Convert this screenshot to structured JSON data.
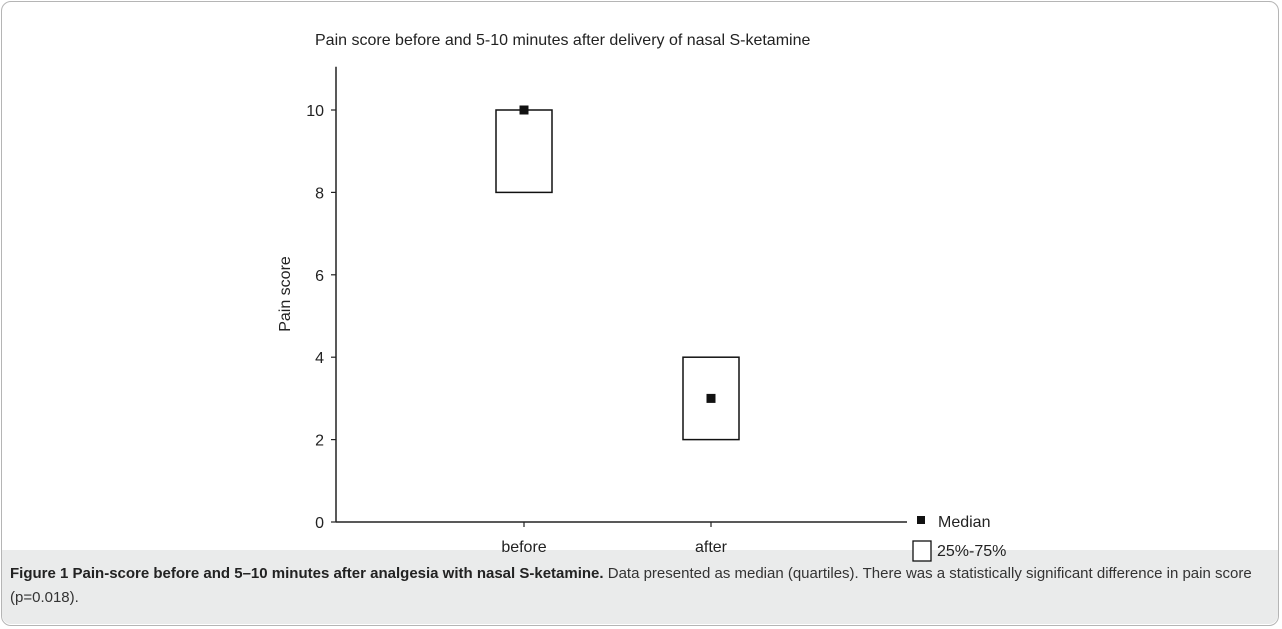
{
  "figure": {
    "label": "Figure 1",
    "title": "Pain-score before and 5–10 minutes after analgesia with nasal S-ketamine.",
    "text": "Data presented as median (quartiles). There was a statistically significant difference in pain score (p=0.018)."
  },
  "chart_data": {
    "type": "box",
    "title": "Pain score before and 5-10 minutes after delivery of nasal S-ketamine",
    "xlabel": "",
    "ylabel": "Pain score",
    "categories": [
      "before",
      "after"
    ],
    "median": [
      10,
      3
    ],
    "q1": [
      8,
      2
    ],
    "q3": [
      10,
      4
    ],
    "ylim": [
      0,
      11
    ],
    "yticks": [
      0,
      2,
      4,
      6,
      8,
      10
    ],
    "grid": false,
    "legend": {
      "position": "bottom-right",
      "items": [
        {
          "symbol": "square-filled",
          "label": "Median"
        },
        {
          "symbol": "square-outline",
          "label": "25%-75%"
        }
      ]
    }
  }
}
